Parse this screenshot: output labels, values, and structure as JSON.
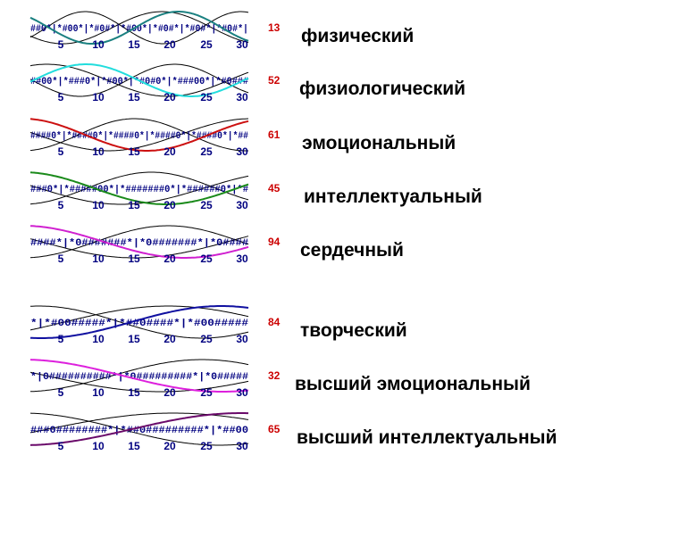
{
  "chart_data": [
    {
      "type": "line",
      "name": "физический",
      "value": "13",
      "color": "#1a8080",
      "period": 23,
      "phase": 0.35,
      "code": "##0*|*#00*|*#0#*|*#00*|*#0#*|*#0#*|*#0#*|",
      "x_ticks": [
        "5",
        "10",
        "15",
        "20",
        "25",
        "30"
      ],
      "xlim": [
        1,
        30
      ],
      "ylim": [
        -1,
        1
      ]
    },
    {
      "type": "line",
      "name": "физиологический",
      "value": "52",
      "color": "#22dddd",
      "period": 28,
      "phase": 0.95,
      "code": "##00*|*###0*|*#00*|*#0#0*|*###00*|*#0###",
      "x_ticks": [
        "5",
        "10",
        "15",
        "20",
        "25",
        "30"
      ],
      "xlim": [
        1,
        30
      ],
      "ylim": [
        -1,
        1
      ]
    },
    {
      "type": "line",
      "name": "эмоциональный",
      "value": "61",
      "color": "#cc1010",
      "period": 33,
      "phase": 0.25,
      "code": "####0*|*####0*|*####0*|*####0*|*####0*|*##",
      "x_ticks": [
        "5",
        "10",
        "15",
        "20",
        "25",
        "30"
      ],
      "xlim": [
        1,
        30
      ],
      "ylim": [
        -1,
        1
      ]
    },
    {
      "type": "line",
      "name": "интеллектуальный",
      "value": "45",
      "color": "#1a8a1a",
      "period": 38,
      "phase": 0.25,
      "code": "###0*|*#####00*|*#######0*|*######0*|*#",
      "x_ticks": [
        "5",
        "10",
        "15",
        "20",
        "25",
        "30"
      ],
      "xlim": [
        1,
        30
      ],
      "ylim": [
        -1,
        1
      ]
    },
    {
      "type": "line",
      "name": "сердечный",
      "value": "94",
      "color": "#d020d0",
      "period": 43,
      "phase": 0.25,
      "code": "####*|*0#######*|*0#######*|*0####",
      "x_ticks": [
        "5",
        "10",
        "15",
        "20",
        "25",
        "30"
      ],
      "xlim": [
        1,
        30
      ],
      "ylim": [
        -1,
        1
      ]
    },
    {
      "type": "line",
      "name": "творческий",
      "value": "84",
      "color": "#1010a0",
      "period": 48,
      "phase": 0.7,
      "code": "*|*#00#####*|*##0####*|*#00#####",
      "x_ticks": [
        "5",
        "10",
        "15",
        "20",
        "25",
        "30"
      ],
      "xlim": [
        1,
        30
      ],
      "ylim": [
        -1,
        1
      ]
    },
    {
      "type": "line",
      "name": "высший эмоциональный",
      "value": "32",
      "color": "#dd20dd",
      "period": 53,
      "phase": 0.25,
      "code": "*|0##########*|*0#########*|*0#####",
      "x_ticks": [
        "5",
        "10",
        "15",
        "20",
        "25",
        "30"
      ],
      "xlim": [
        1,
        30
      ],
      "ylim": [
        -1,
        1
      ]
    },
    {
      "type": "line",
      "name": "высший интеллектуальный",
      "value": "65",
      "color": "#6a0a6a",
      "period": 58,
      "phase": 0.75,
      "code": "###0########*|*##0#########*|*##00",
      "x_ticks": [
        "5",
        "10",
        "15",
        "20",
        "25",
        "30"
      ],
      "xlim": [
        1,
        30
      ],
      "ylim": [
        -1,
        1
      ]
    }
  ]
}
